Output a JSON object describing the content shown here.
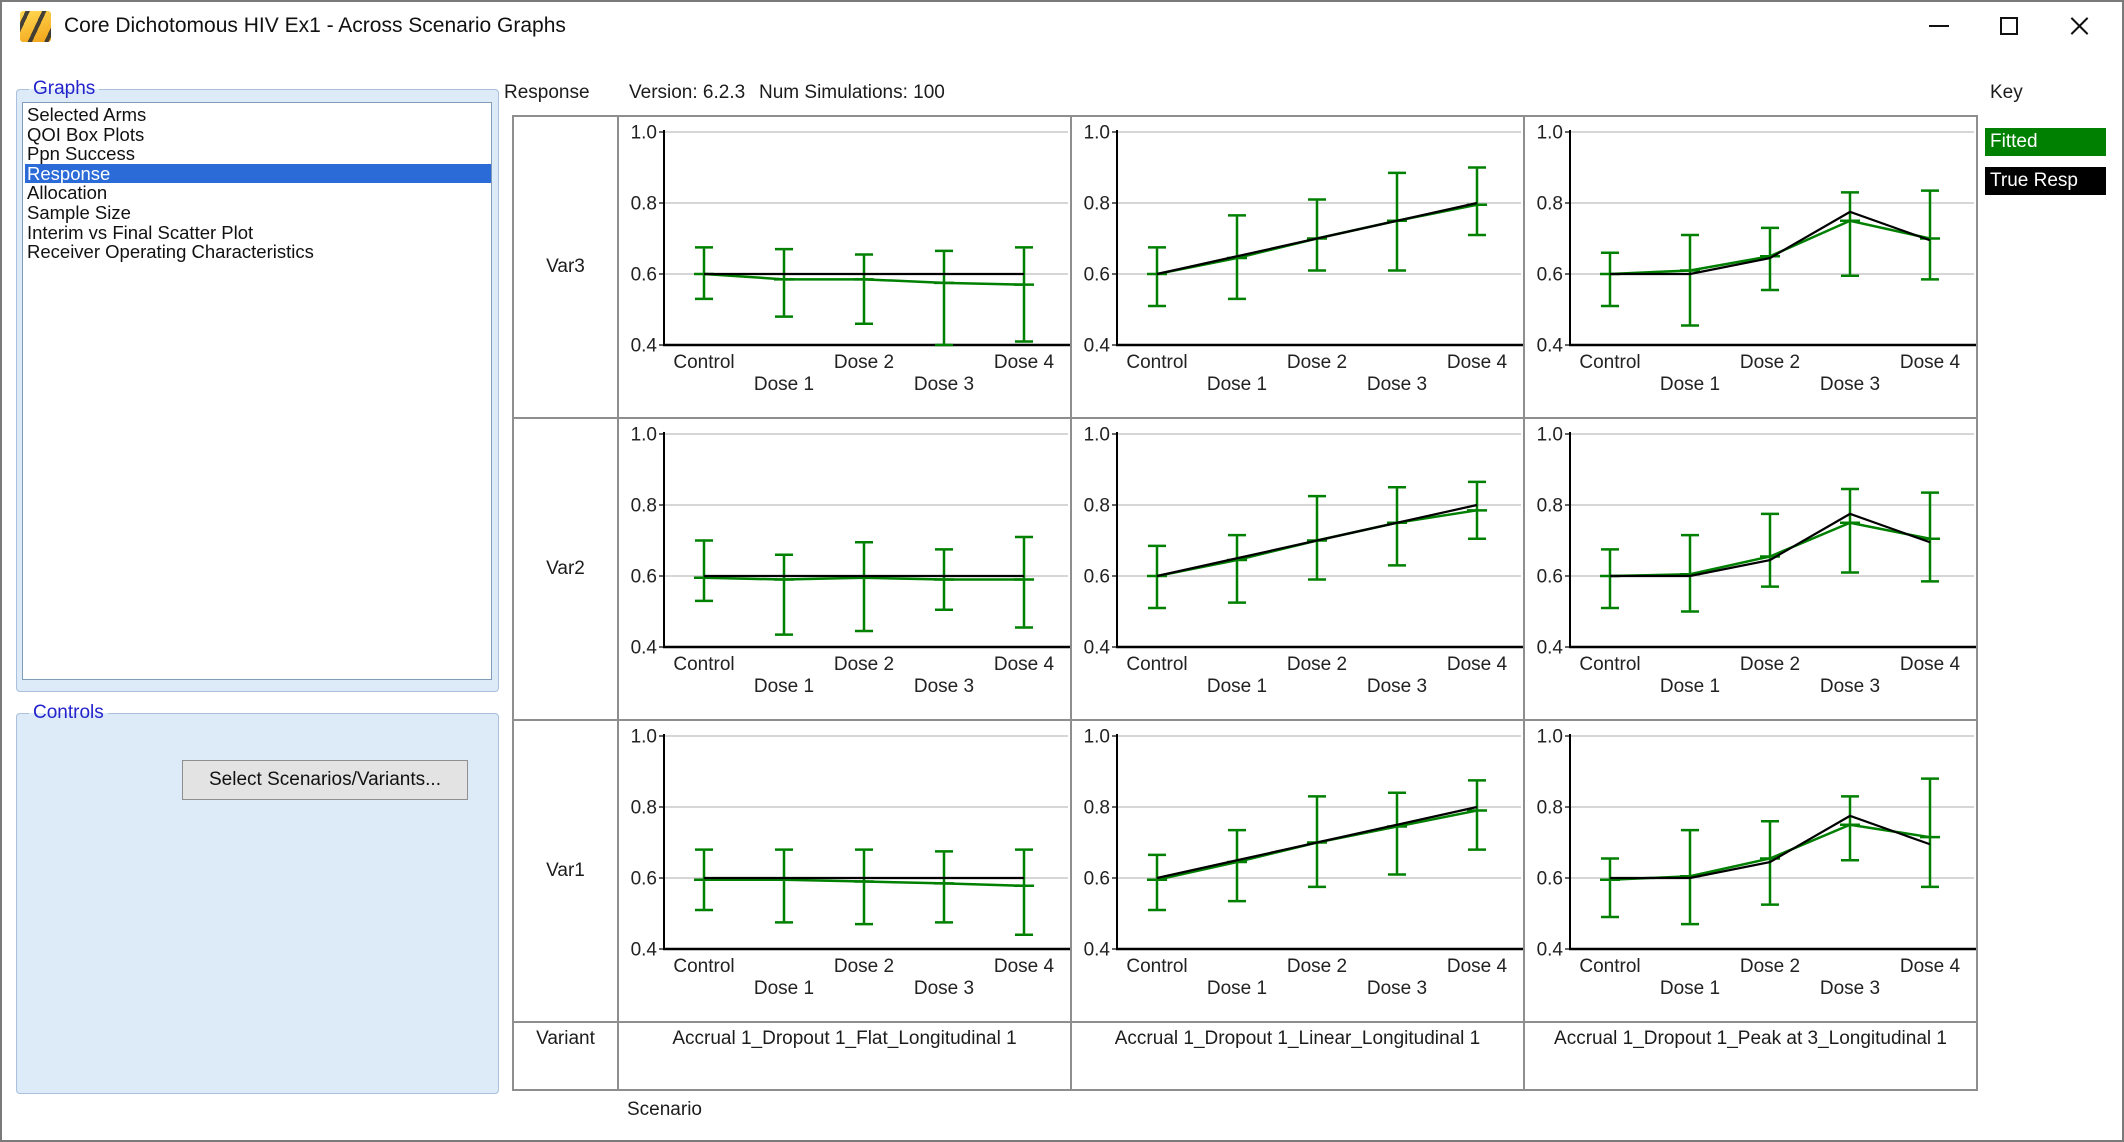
{
  "window": {
    "title": "Core Dichotomous HIV Ex1 - Across Scenario Graphs"
  },
  "sidebar": {
    "graphs_group_label": "Graphs",
    "items": [
      "Selected Arms",
      "QOI Box Plots",
      "Ppn Success",
      "Response",
      "Allocation",
      "Sample Size",
      "Interim vs Final Scatter Plot",
      "Receiver Operating Characteristics"
    ],
    "selected_item": "Response",
    "controls_group_label": "Controls",
    "select_button_label": "Select Scenarios/Variants..."
  },
  "header": {
    "graph_name": "Response",
    "version_label": "Version: 6.2.3",
    "num_simulations_label": "Num Simulations: 100"
  },
  "key": {
    "title": "Key",
    "entries": [
      {
        "label": "Fitted",
        "color": "#008000",
        "text_color": "#ffffff"
      },
      {
        "label": "True Resp",
        "color": "#000000",
        "text_color": "#ffffff"
      }
    ]
  },
  "footer": {
    "variant_header": "Variant",
    "scenario_label": "Scenario"
  },
  "colors": {
    "fitted": "#008000",
    "true_resp": "#000000",
    "selection_bg": "#2b6bd8",
    "grid_line": "#c9c9c9",
    "table_border": "#8e8e8e",
    "panel_fill": "#ddeaf8",
    "group_label_blue": "#2323cc"
  },
  "chart_data": {
    "type": "line",
    "title": "Response",
    "x_categories": [
      "Control",
      "Dose 1",
      "Dose 2",
      "Dose 3",
      "Dose 4"
    ],
    "ylim": [
      0.4,
      1.0
    ],
    "yticks": [
      0.4,
      0.6,
      0.8,
      1.0
    ],
    "grid": true,
    "legend": [
      "Fitted",
      "True Resp"
    ],
    "legend_position": "top-right",
    "row_labels": [
      "Var3",
      "Var2",
      "Var1"
    ],
    "variants": [
      "Accrual 1_Dropout 1_Flat_Longitudinal 1",
      "Accrual 1_Dropout 1_Linear_Longitudinal 1",
      "Accrual 1_Dropout 1_Peak at 3_Longitudinal 1"
    ],
    "cells": [
      {
        "row": "Var3",
        "variant_index": 0,
        "fitted": [
          0.6,
          0.585,
          0.585,
          0.575,
          0.57
        ],
        "fitted_lo": [
          0.53,
          0.48,
          0.46,
          0.4,
          0.41
        ],
        "fitted_hi": [
          0.675,
          0.67,
          0.655,
          0.665,
          0.675
        ],
        "true_resp": [
          0.6,
          0.6,
          0.6,
          0.6,
          0.6
        ]
      },
      {
        "row": "Var3",
        "variant_index": 1,
        "fitted": [
          0.6,
          0.645,
          0.7,
          0.75,
          0.795
        ],
        "fitted_lo": [
          0.51,
          0.53,
          0.61,
          0.61,
          0.71
        ],
        "fitted_hi": [
          0.675,
          0.765,
          0.81,
          0.885,
          0.9
        ],
        "true_resp": [
          0.6,
          0.65,
          0.7,
          0.75,
          0.8
        ]
      },
      {
        "row": "Var3",
        "variant_index": 2,
        "fitted": [
          0.6,
          0.61,
          0.65,
          0.75,
          0.7
        ],
        "fitted_lo": [
          0.51,
          0.455,
          0.555,
          0.595,
          0.585
        ],
        "fitted_hi": [
          0.66,
          0.71,
          0.73,
          0.83,
          0.835
        ],
        "true_resp": [
          0.6,
          0.6,
          0.645,
          0.775,
          0.695
        ]
      },
      {
        "row": "Var2",
        "variant_index": 0,
        "fitted": [
          0.595,
          0.59,
          0.595,
          0.59,
          0.59
        ],
        "fitted_lo": [
          0.53,
          0.435,
          0.445,
          0.505,
          0.455
        ],
        "fitted_hi": [
          0.7,
          0.66,
          0.695,
          0.675,
          0.71
        ],
        "true_resp": [
          0.6,
          0.6,
          0.6,
          0.6,
          0.6
        ]
      },
      {
        "row": "Var2",
        "variant_index": 1,
        "fitted": [
          0.6,
          0.645,
          0.7,
          0.75,
          0.785
        ],
        "fitted_lo": [
          0.51,
          0.525,
          0.59,
          0.63,
          0.705
        ],
        "fitted_hi": [
          0.685,
          0.715,
          0.825,
          0.85,
          0.865
        ],
        "true_resp": [
          0.6,
          0.65,
          0.7,
          0.75,
          0.8
        ]
      },
      {
        "row": "Var2",
        "variant_index": 2,
        "fitted": [
          0.6,
          0.605,
          0.655,
          0.75,
          0.705
        ],
        "fitted_lo": [
          0.51,
          0.5,
          0.57,
          0.61,
          0.585
        ],
        "fitted_hi": [
          0.675,
          0.715,
          0.775,
          0.845,
          0.835
        ],
        "true_resp": [
          0.6,
          0.6,
          0.645,
          0.775,
          0.695
        ]
      },
      {
        "row": "Var1",
        "variant_index": 0,
        "fitted": [
          0.595,
          0.595,
          0.59,
          0.585,
          0.578
        ],
        "fitted_lo": [
          0.51,
          0.475,
          0.47,
          0.475,
          0.44
        ],
        "fitted_hi": [
          0.68,
          0.68,
          0.68,
          0.675,
          0.68
        ],
        "true_resp": [
          0.6,
          0.6,
          0.6,
          0.6,
          0.6
        ]
      },
      {
        "row": "Var1",
        "variant_index": 1,
        "fitted": [
          0.595,
          0.645,
          0.7,
          0.745,
          0.79
        ],
        "fitted_lo": [
          0.51,
          0.535,
          0.575,
          0.61,
          0.68
        ],
        "fitted_hi": [
          0.665,
          0.735,
          0.83,
          0.84,
          0.875
        ],
        "true_resp": [
          0.6,
          0.65,
          0.7,
          0.75,
          0.8
        ]
      },
      {
        "row": "Var1",
        "variant_index": 2,
        "fitted": [
          0.595,
          0.605,
          0.655,
          0.75,
          0.715
        ],
        "fitted_lo": [
          0.49,
          0.47,
          0.525,
          0.65,
          0.575
        ],
        "fitted_hi": [
          0.655,
          0.735,
          0.76,
          0.83,
          0.88
        ],
        "true_resp": [
          0.6,
          0.6,
          0.645,
          0.775,
          0.695
        ]
      }
    ]
  }
}
